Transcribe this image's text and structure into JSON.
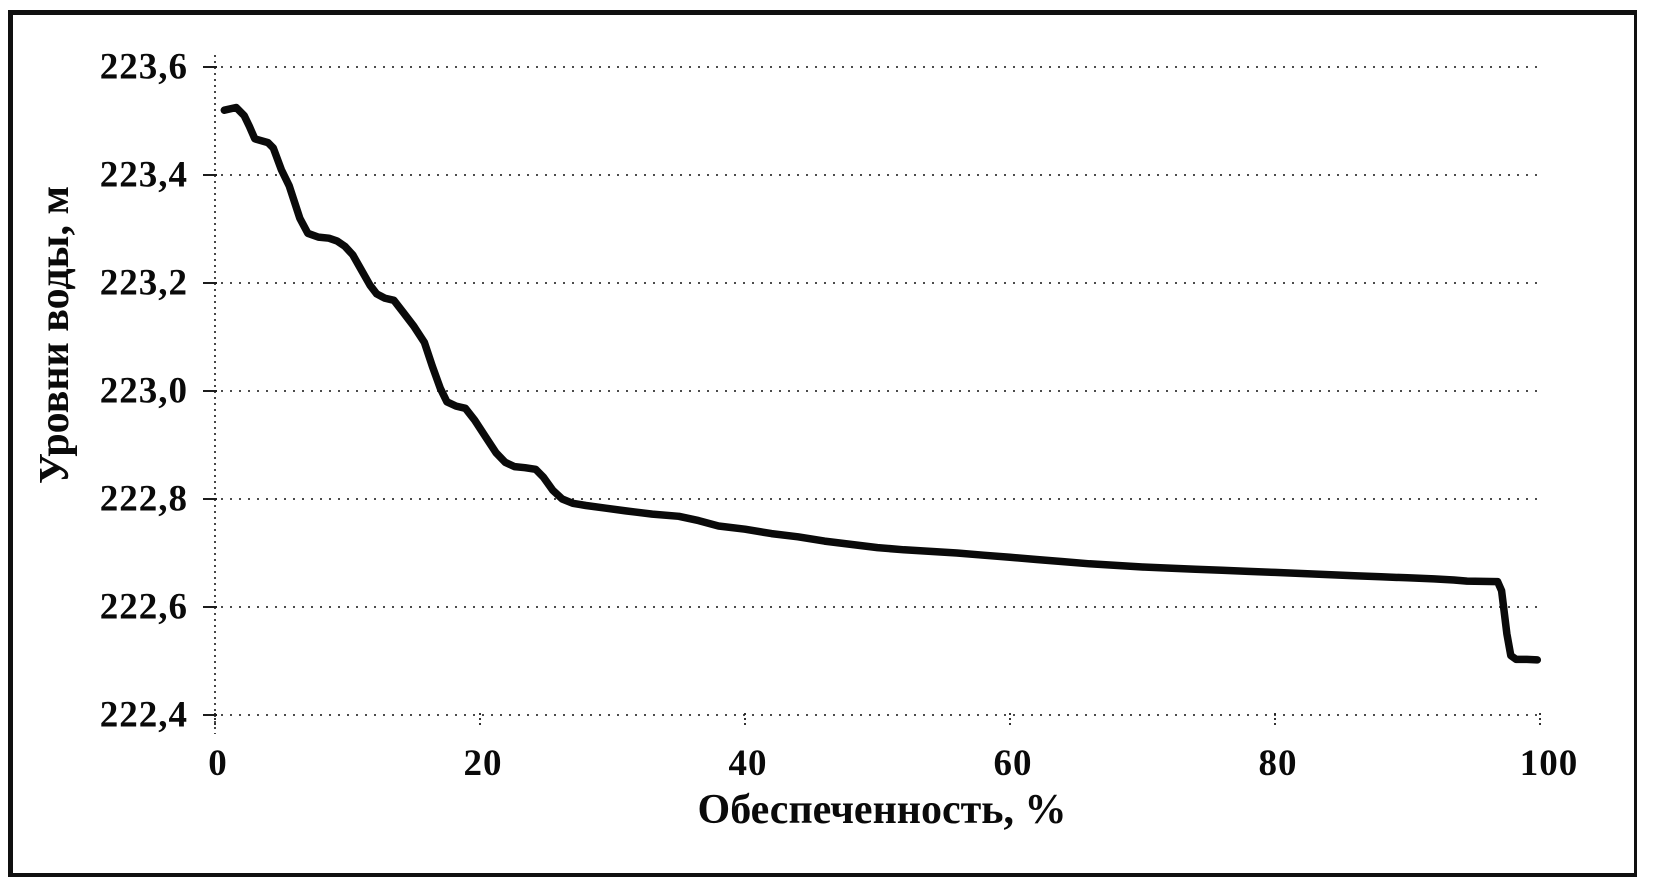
{
  "colors": {
    "background": "#ffffff",
    "frame": "#101010",
    "grid": "#1c1c1c",
    "text": "#0a0a0a",
    "curve": "#0a0a0a"
  },
  "chart_data": {
    "type": "line",
    "title": "",
    "xlabel": "Обеспеченность, %",
    "ylabel": "Уровни воды, м",
    "xlim": [
      0,
      100
    ],
    "ylim": [
      222.4,
      223.6
    ],
    "decimal_separator": ",",
    "grid": {
      "horizontal": true,
      "vertical": false,
      "style": "dotted"
    },
    "legend": "none",
    "x_ticks": [
      {
        "v": 0,
        "label": "0"
      },
      {
        "v": 20,
        "label": "20"
      },
      {
        "v": 40,
        "label": "40"
      },
      {
        "v": 60,
        "label": "60"
      },
      {
        "v": 80,
        "label": "80"
      },
      {
        "v": 100,
        "label": "100"
      }
    ],
    "y_ticks": [
      {
        "v": 222.4,
        "label": "222,4"
      },
      {
        "v": 222.6,
        "label": "222,6"
      },
      {
        "v": 222.8,
        "label": "222,8"
      },
      {
        "v": 223.0,
        "label": "223,0"
      },
      {
        "v": 223.2,
        "label": "223,2"
      },
      {
        "v": 223.4,
        "label": "223,4"
      },
      {
        "v": 223.6,
        "label": "223,6"
      }
    ],
    "series": [
      {
        "name": "кривая обеспеченности уровней воды",
        "color": "#0a0a0a",
        "stroke_width": 7.5,
        "points": [
          [
            0.7,
            223.52
          ],
          [
            1.6,
            223.525
          ],
          [
            2.2,
            223.51
          ],
          [
            2.6,
            223.49
          ],
          [
            3.0,
            223.467
          ],
          [
            4.0,
            223.46
          ],
          [
            4.4,
            223.45
          ],
          [
            5.0,
            223.41
          ],
          [
            5.6,
            223.38
          ],
          [
            6.4,
            223.32
          ],
          [
            7.0,
            223.292
          ],
          [
            7.8,
            223.285
          ],
          [
            8.6,
            223.283
          ],
          [
            9.2,
            223.278
          ],
          [
            9.8,
            223.268
          ],
          [
            10.4,
            223.252
          ],
          [
            11.0,
            223.226
          ],
          [
            11.7,
            223.196
          ],
          [
            12.2,
            223.18
          ],
          [
            12.8,
            223.172
          ],
          [
            13.5,
            223.168
          ],
          [
            14.2,
            223.146
          ],
          [
            15.0,
            223.12
          ],
          [
            15.8,
            223.09
          ],
          [
            16.4,
            223.046
          ],
          [
            17.0,
            223.005
          ],
          [
            17.5,
            222.98
          ],
          [
            18.2,
            222.972
          ],
          [
            18.9,
            222.968
          ],
          [
            19.6,
            222.946
          ],
          [
            20.4,
            222.916
          ],
          [
            21.2,
            222.886
          ],
          [
            21.9,
            222.868
          ],
          [
            22.6,
            222.86
          ],
          [
            23.4,
            222.858
          ],
          [
            24.2,
            222.855
          ],
          [
            24.8,
            222.84
          ],
          [
            25.5,
            222.816
          ],
          [
            26.2,
            222.8
          ],
          [
            27.0,
            222.792
          ],
          [
            28.0,
            222.788
          ],
          [
            29.5,
            222.783
          ],
          [
            31.0,
            222.778
          ],
          [
            33.0,
            222.772
          ],
          [
            35.0,
            222.768
          ],
          [
            36.5,
            222.76
          ],
          [
            38.0,
            222.75
          ],
          [
            40.0,
            222.744
          ],
          [
            42.0,
            222.736
          ],
          [
            44.0,
            222.73
          ],
          [
            46.0,
            222.722
          ],
          [
            48.0,
            222.716
          ],
          [
            50.0,
            222.71
          ],
          [
            52.0,
            222.706
          ],
          [
            54.0,
            222.703
          ],
          [
            56.0,
            222.7
          ],
          [
            58.0,
            222.696
          ],
          [
            60.0,
            222.692
          ],
          [
            62.0,
            222.688
          ],
          [
            64.0,
            222.684
          ],
          [
            66.0,
            222.68
          ],
          [
            68.0,
            222.677
          ],
          [
            70.0,
            222.674
          ],
          [
            72.0,
            222.672
          ],
          [
            74.0,
            222.67
          ],
          [
            76.0,
            222.668
          ],
          [
            78.0,
            222.666
          ],
          [
            80.0,
            222.664
          ],
          [
            82.0,
            222.662
          ],
          [
            84.0,
            222.66
          ],
          [
            86.0,
            222.658
          ],
          [
            88.0,
            222.656
          ],
          [
            90.0,
            222.654
          ],
          [
            92.0,
            222.652
          ],
          [
            93.5,
            222.65
          ],
          [
            94.5,
            222.648
          ],
          [
            96.8,
            222.647
          ],
          [
            97.1,
            222.63
          ],
          [
            97.5,
            222.55
          ],
          [
            97.8,
            222.51
          ],
          [
            98.2,
            222.503
          ],
          [
            99.0,
            222.503
          ],
          [
            99.8,
            222.502
          ]
        ]
      }
    ]
  }
}
